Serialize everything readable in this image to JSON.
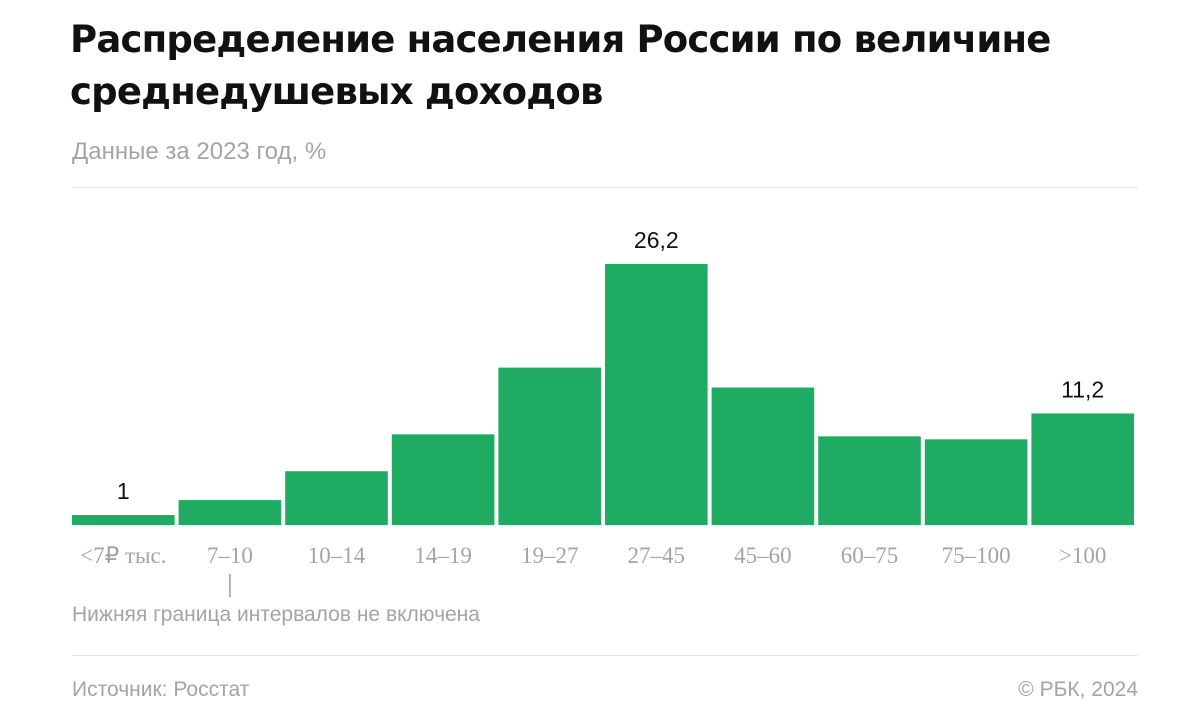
{
  "header": {
    "title": "Распределение населения России по величине среднедушевых доходов",
    "subtitle": "Данные за 2023 год, %"
  },
  "footer": {
    "note": "Нижняя граница интервалов не включена",
    "source": "Источник: Росстат",
    "copyright": "© РБК, 2024"
  },
  "colors": {
    "bar": "#1fac62",
    "tick_label": "#a4a4a4",
    "value_label": "#111111"
  },
  "chart_data": {
    "type": "bar",
    "title": "Распределение населения России по величине среднедушевых доходов",
    "subtitle": "Данные за 2023 год, %",
    "xlabel": "",
    "ylabel": "",
    "categories": [
      "<7₽ тыс.",
      "7–10",
      "10–14",
      "14–19",
      "19–27",
      "27–45",
      "45–60",
      "60–75",
      "75–100",
      ">100"
    ],
    "values": [
      1,
      2.5,
      5.4,
      9.1,
      15.8,
      26.2,
      13.8,
      8.9,
      8.6,
      11.2
    ],
    "data_labels": [
      "1",
      "",
      "",
      "",
      "",
      "26,2",
      "",
      "",
      "",
      "11,2"
    ],
    "ylim": [
      0,
      26.2
    ],
    "grid": false,
    "legend": "none"
  }
}
